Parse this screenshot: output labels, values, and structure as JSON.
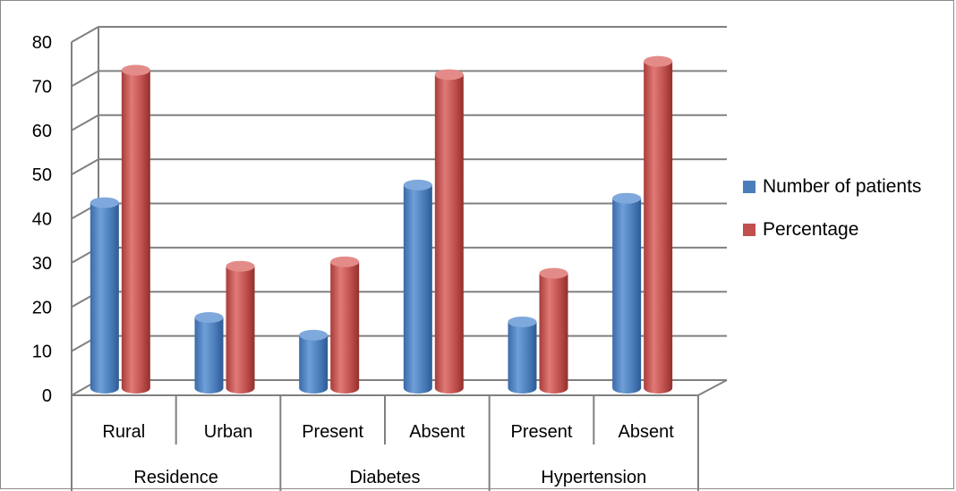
{
  "chart_data": {
    "type": "bar",
    "title": "",
    "xlabel": "",
    "ylabel": "",
    "ylim": [
      0,
      80
    ],
    "yticks": [
      0,
      10,
      20,
      30,
      40,
      50,
      60,
      70,
      80
    ],
    "grid": true,
    "legend_position": "right",
    "categories": [
      "Rural",
      "Urban",
      "Present",
      "Absent",
      "Present",
      "Absent"
    ],
    "groups": [
      {
        "label": "Residence",
        "span": 2
      },
      {
        "label": "Diabetes",
        "span": 2
      },
      {
        "label": "Hypertension",
        "span": 2
      }
    ],
    "series": [
      {
        "name": "Number of patients",
        "color": "#4a7ebb",
        "values": [
          42,
          16,
          12,
          46,
          15,
          43
        ]
      },
      {
        "name": "Percentage",
        "color": "#c0504d",
        "values": [
          72,
          27.6,
          28.6,
          71,
          26,
          74
        ]
      }
    ]
  }
}
